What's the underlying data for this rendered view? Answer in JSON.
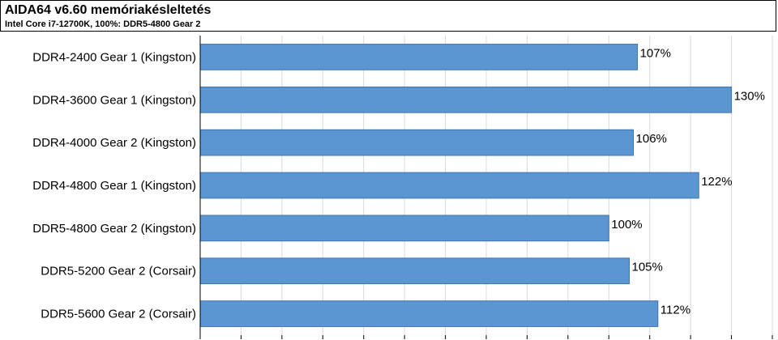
{
  "header": {
    "title": "AIDA64 v6.60 memóriakésleltetés",
    "subtitle": "Intel Core i7-12700K, 100%: DDR5-4800 Gear 2"
  },
  "colors": {
    "bar": "#5b96d2",
    "bar_edge": "#3f74b0",
    "grid": "#d9d9d9",
    "axis": "#000000"
  },
  "chart_data": {
    "type": "bar",
    "orientation": "horizontal",
    "title": "AIDA64 v6.60 memóriakésleltetés",
    "subtitle": "Intel Core i7-12700K, 100%: DDR5-4800 Gear 2",
    "categories": [
      "DDR4-2400 Gear 1 (Kingston)",
      "DDR4-3600 Gear 1 (Kingston)",
      "DDR4-4000 Gear 2 (Kingston)",
      "DDR4-4800 Gear 1 (Kingston)",
      "DDR5-4800 Gear 2 (Kingston)",
      "DDR5-5200 Gear 2 (Corsair)",
      "DDR5-5600 Gear 2 (Corsair)"
    ],
    "values": [
      107,
      130,
      106,
      122,
      100,
      105,
      112
    ],
    "value_labels": [
      "107%",
      "130%",
      "106%",
      "122%",
      "100%",
      "105%",
      "112%"
    ],
    "unit": "%",
    "xlim": [
      0,
      140
    ],
    "grid": true,
    "legend": "none"
  }
}
